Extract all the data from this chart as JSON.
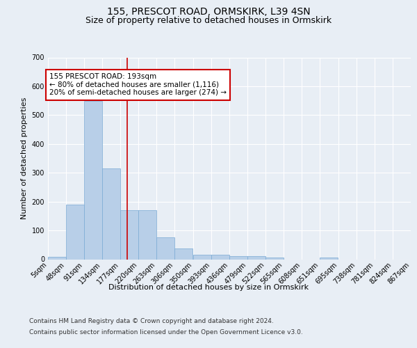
{
  "title": "155, PRESCOT ROAD, ORMSKIRK, L39 4SN",
  "subtitle": "Size of property relative to detached houses in Ormskirk",
  "xlabel": "Distribution of detached houses by size in Ormskirk",
  "ylabel": "Number of detached properties",
  "footer_line1": "Contains HM Land Registry data © Crown copyright and database right 2024.",
  "footer_line2": "Contains public sector information licensed under the Open Government Licence v3.0.",
  "bins": [
    "5sqm",
    "48sqm",
    "91sqm",
    "134sqm",
    "177sqm",
    "220sqm",
    "263sqm",
    "306sqm",
    "350sqm",
    "393sqm",
    "436sqm",
    "479sqm",
    "522sqm",
    "565sqm",
    "608sqm",
    "651sqm",
    "695sqm",
    "738sqm",
    "781sqm",
    "824sqm",
    "867sqm"
  ],
  "bin_edges": [
    5,
    48,
    91,
    134,
    177,
    220,
    263,
    306,
    350,
    393,
    436,
    479,
    522,
    565,
    608,
    651,
    695,
    738,
    781,
    824,
    867
  ],
  "values": [
    8,
    190,
    548,
    314,
    170,
    170,
    75,
    38,
    15,
    15,
    10,
    10,
    5,
    0,
    0,
    5,
    0,
    0,
    0,
    0
  ],
  "bar_color": "#b8cfe8",
  "bar_edge_color": "#7aaad4",
  "red_line_x": 193,
  "annotation_text": "155 PRESCOT ROAD: 193sqm\n← 80% of detached houses are smaller (1,116)\n20% of semi-detached houses are larger (274) →",
  "annotation_box_color": "#ffffff",
  "annotation_box_edge": "#cc0000",
  "red_line_color": "#cc0000",
  "ylim": [
    0,
    700
  ],
  "yticks": [
    0,
    100,
    200,
    300,
    400,
    500,
    600,
    700
  ],
  "bg_color": "#e8eef5",
  "plot_bg_color": "#e8eef5",
  "grid_color": "#ffffff",
  "title_fontsize": 10,
  "subtitle_fontsize": 9,
  "axis_label_fontsize": 8,
  "tick_fontsize": 7,
  "annotation_fontsize": 7.5,
  "footer_fontsize": 6.5
}
